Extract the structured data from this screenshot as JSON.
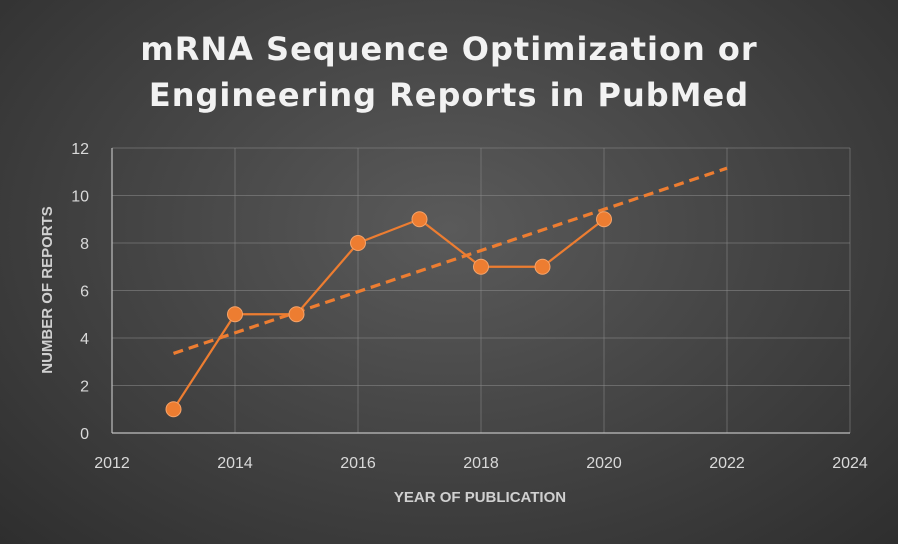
{
  "chart_data": {
    "type": "scatter",
    "title_lines": [
      "mRNA Sequence Optimization or",
      "Engineering Reports in PubMed"
    ],
    "xlabel": "YEAR OF PUBLICATION",
    "ylabel": "NUMBER OF REPORTS",
    "xlim": [
      2012,
      2024
    ],
    "ylim": [
      0,
      12
    ],
    "xticks": [
      2012,
      2014,
      2016,
      2018,
      2020,
      2022,
      2024
    ],
    "yticks": [
      0,
      2,
      4,
      6,
      8,
      10,
      12
    ],
    "grid": true,
    "legend": "none",
    "series": [
      {
        "x": [
          2013,
          2014,
          2015,
          2016,
          2017,
          2018,
          2019,
          2020
        ],
        "y": [
          1,
          5,
          5,
          8,
          9,
          7,
          7,
          9
        ],
        "style": "line-with-markers",
        "color": "#ed7d31"
      }
    ],
    "trendline": {
      "style": "dashed",
      "color": "#ed7d31",
      "x": [
        2013,
        2022
      ],
      "y": [
        3.35,
        11.15
      ]
    }
  }
}
